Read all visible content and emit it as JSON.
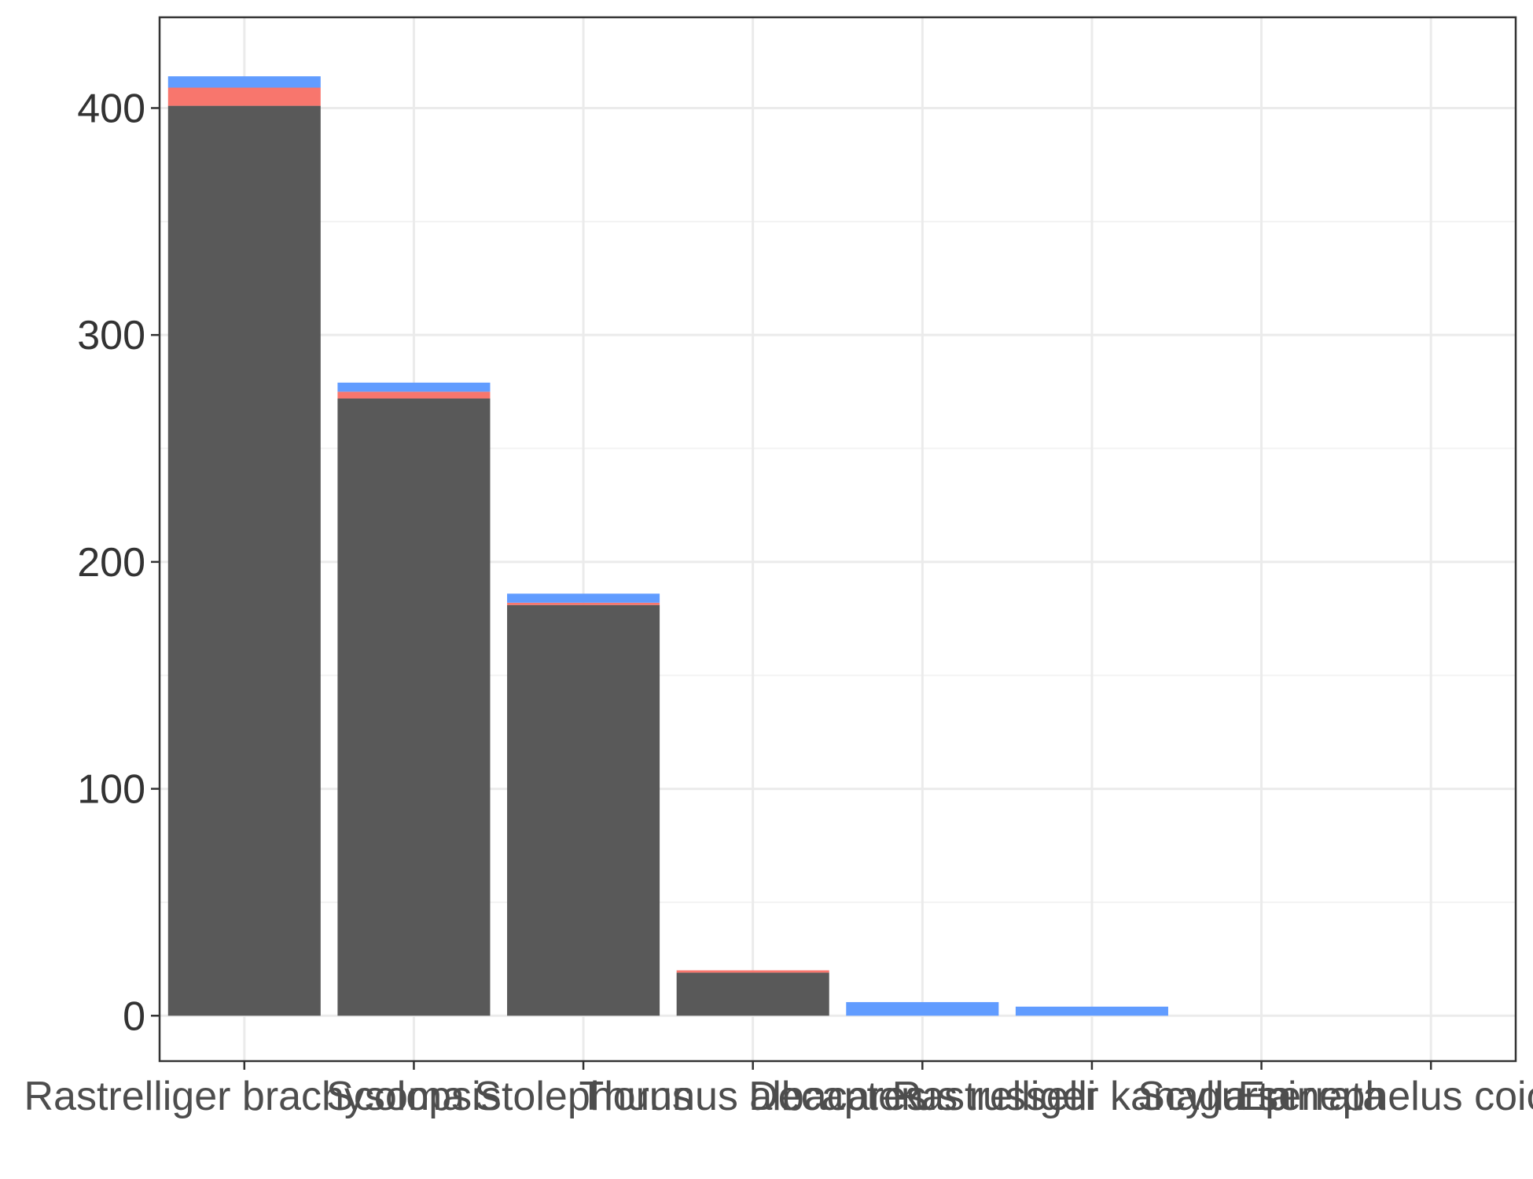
{
  "chart_data": {
    "type": "bar",
    "stacked": true,
    "title": "",
    "xlabel": "",
    "ylabel": "",
    "legend": "none",
    "grid": true,
    "ylim": [
      -20,
      440
    ],
    "y_ticks": [
      0,
      100,
      200,
      300,
      400
    ],
    "y_tick_labels": [
      "0",
      "100",
      "200",
      "300",
      "400"
    ],
    "categories": [
      "Rastrelliger brachysoma",
      "Scolopsis",
      "Stolephorus",
      "Thunnus albacares",
      "Decapterus russelli",
      "Rastrelliger kanagurta",
      "Scylla serrata",
      "Epinephelus coioides"
    ],
    "series": [
      {
        "color": "#595959",
        "values": [
          401,
          272,
          181,
          19,
          0,
          0,
          0,
          0
        ]
      },
      {
        "color": "#F8766D",
        "values": [
          8,
          3,
          1,
          1,
          0,
          0,
          0,
          0
        ]
      },
      {
        "color": "#619CFF",
        "values": [
          5,
          4,
          4,
          0,
          6,
          4,
          0,
          0
        ]
      }
    ],
    "colors": {
      "panel_border": "#333333",
      "grid_major": "#ebebeb",
      "grid_minor": "#f3f3f3",
      "tick_text": "#4d4d4d"
    }
  }
}
